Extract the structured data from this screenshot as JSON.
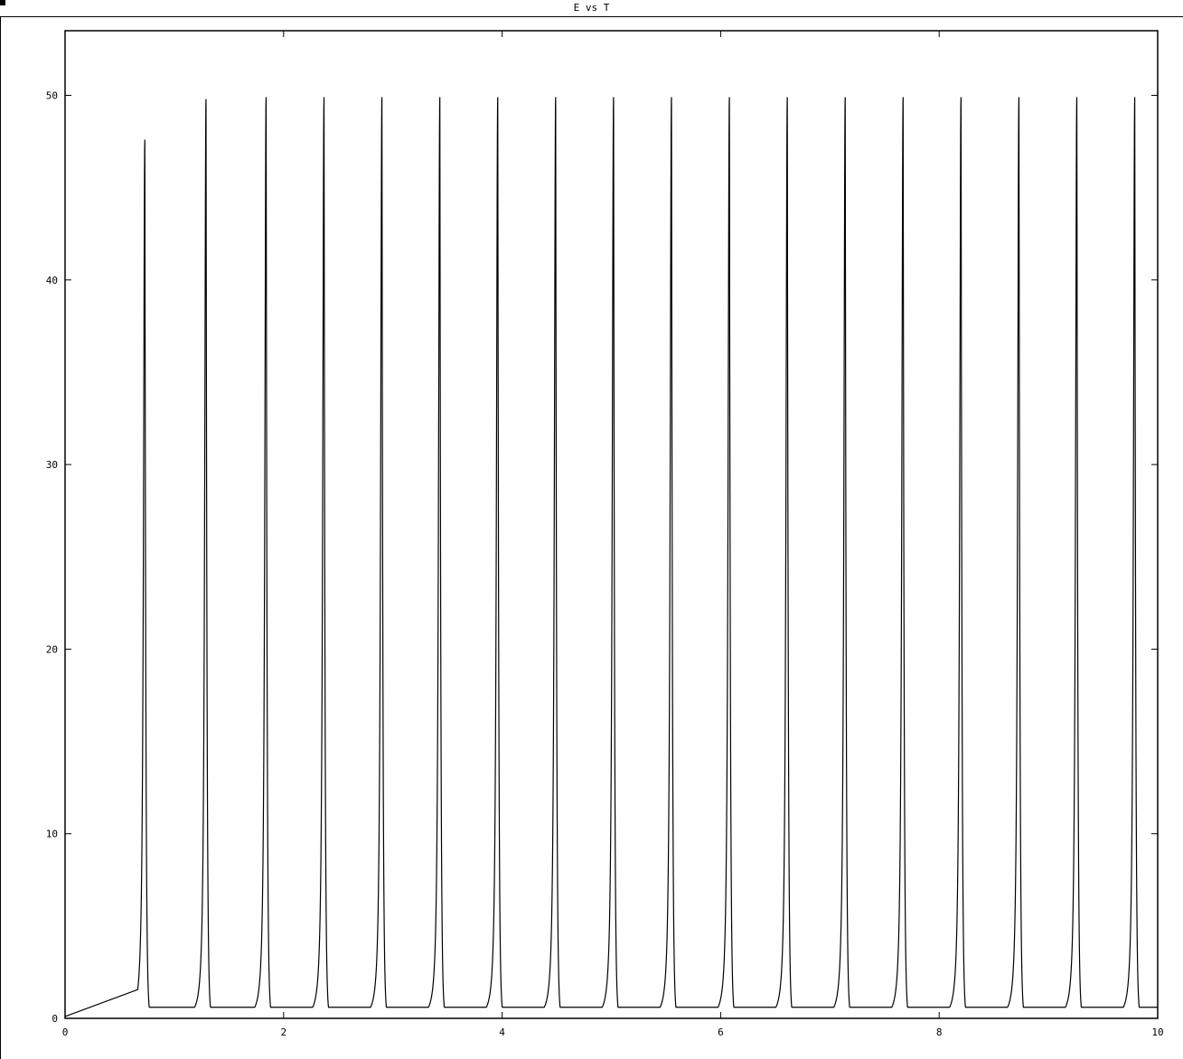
{
  "window": {
    "title": "E vs T"
  },
  "chart_data": {
    "type": "line",
    "title": "E vs T",
    "xlabel": "",
    "ylabel": "",
    "xlim": [
      0,
      10
    ],
    "ylim": [
      0,
      53.5
    ],
    "x_ticks": [
      0,
      2,
      4,
      6,
      8,
      10
    ],
    "y_ticks": [
      0,
      10,
      20,
      30,
      40,
      50
    ],
    "grid": false,
    "line_color": "#000000",
    "series": [
      {
        "peaks": [
          {
            "t": 0.73,
            "E": 47.6
          },
          {
            "t": 1.29,
            "E": 49.8
          },
          {
            "t": 1.84,
            "E": 49.9
          },
          {
            "t": 2.37,
            "E": 49.9
          },
          {
            "t": 2.9,
            "E": 49.9
          },
          {
            "t": 3.43,
            "E": 49.9
          },
          {
            "t": 3.96,
            "E": 49.9
          },
          {
            "t": 4.49,
            "E": 49.9
          },
          {
            "t": 5.02,
            "E": 49.9
          },
          {
            "t": 5.55,
            "E": 49.9
          },
          {
            "t": 6.08,
            "E": 49.9
          },
          {
            "t": 6.61,
            "E": 49.9
          },
          {
            "t": 7.14,
            "E": 49.9
          },
          {
            "t": 7.67,
            "E": 49.9
          },
          {
            "t": 8.2,
            "E": 49.9
          },
          {
            "t": 8.73,
            "E": 49.9
          },
          {
            "t": 9.26,
            "E": 49.9
          },
          {
            "t": 9.79,
            "E": 49.9
          }
        ],
        "start_value": 0.1,
        "trough_value": 0.6,
        "end_value": 0.6
      }
    ]
  }
}
